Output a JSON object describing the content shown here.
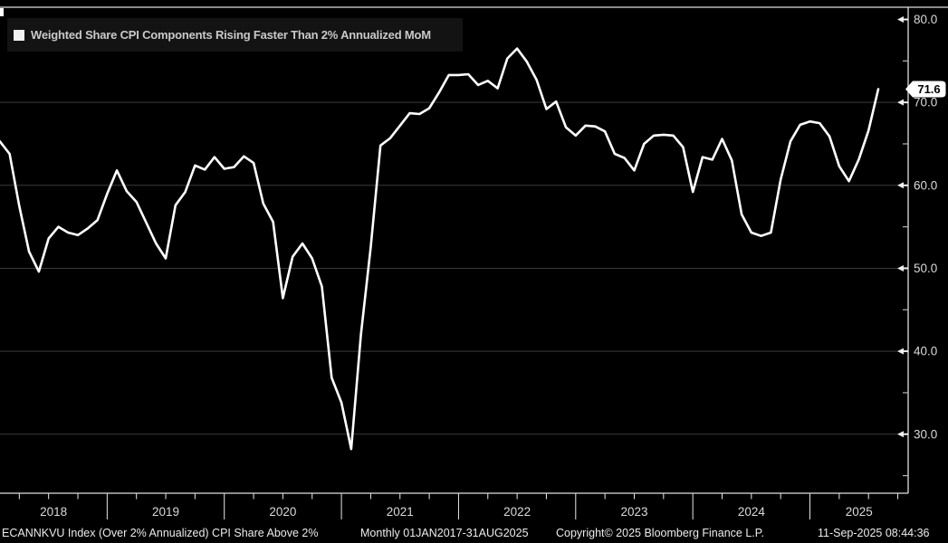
{
  "legend": {
    "label": "Weighted Share CPI Components Rising Faster Than 2% Annualized MoM",
    "marker": "white-square"
  },
  "footer": {
    "ticker": "ECANNKVU Index (Over 2% Annualized) CPI Share Above 2%",
    "frequency_range": "Monthly 01JAN2017-31AUG2025",
    "copyright": "Copyright© 2025 Bloomberg Finance L.P.",
    "timestamp": "11-Sep-2025 08:44:36"
  },
  "colors": {
    "background": "#000000",
    "line": "#ffffff",
    "grid": "#3a3a3a",
    "frame": "#dedede",
    "tick_label": "#d9d9d9",
    "year_label": "#d9d9d9",
    "tag_bg": "#ffffff",
    "tag_text": "#000000"
  },
  "chart_data": {
    "type": "line",
    "title": "Weighted Share CPI Components Rising Faster Than 2% Annualized MoM",
    "series_name": "ECANNKVU Index (Over 2% Annualized) CPI Share Above 2%",
    "frequency": "monthly",
    "start_month": "2018-01",
    "end_month": "2025-08",
    "values": [
      65.0,
      65.3,
      63.8,
      57.5,
      52.0,
      49.6,
      53.6,
      55.0,
      54.3,
      54.0,
      54.8,
      55.8,
      59.0,
      61.8,
      59.3,
      58.0,
      55.5,
      53.0,
      51.2,
      57.6,
      59.2,
      62.4,
      61.9,
      63.4,
      62.0,
      62.2,
      63.5,
      62.7,
      57.8,
      55.6,
      46.4,
      51.4,
      53.0,
      51.2,
      47.8,
      36.8,
      33.8,
      28.2,
      42.0,
      52.5,
      64.8,
      65.7,
      67.2,
      68.7,
      68.6,
      69.3,
      71.2,
      73.3,
      73.3,
      73.4,
      72.1,
      72.6,
      71.7,
      75.3,
      76.5,
      74.9,
      72.7,
      69.2,
      70.1,
      67.0,
      66.0,
      67.2,
      67.1,
      66.5,
      63.8,
      63.3,
      61.8,
      65.0,
      66.0,
      66.1,
      66.0,
      64.6,
      59.2,
      63.4,
      63.1,
      65.6,
      63.0,
      56.5,
      54.3,
      53.9,
      54.3,
      60.7,
      65.3,
      67.3,
      67.7,
      67.5,
      65.9,
      62.3,
      60.5,
      63.1,
      66.6,
      71.6
    ],
    "last_value": 71.6,
    "last_value_label": "71.6",
    "y_axis": {
      "side": "right",
      "ticks": [
        {
          "value": 80,
          "label": "80.0"
        },
        {
          "value": 70,
          "label": "70.0"
        },
        {
          "value": 60,
          "label": "60.0"
        },
        {
          "value": 50,
          "label": "50.0"
        },
        {
          "value": 40,
          "label": "40.0"
        },
        {
          "value": 30,
          "label": "30.0"
        }
      ],
      "minor_ticks": [
        75,
        65,
        55,
        45,
        35,
        25
      ]
    },
    "x_axis": {
      "years": [
        "2018",
        "2019",
        "2020",
        "2021",
        "2022",
        "2023",
        "2024",
        "2025"
      ],
      "minor_tick_interval_months": 3
    },
    "grid": "horizontal-major",
    "legend_position": "top-left"
  }
}
